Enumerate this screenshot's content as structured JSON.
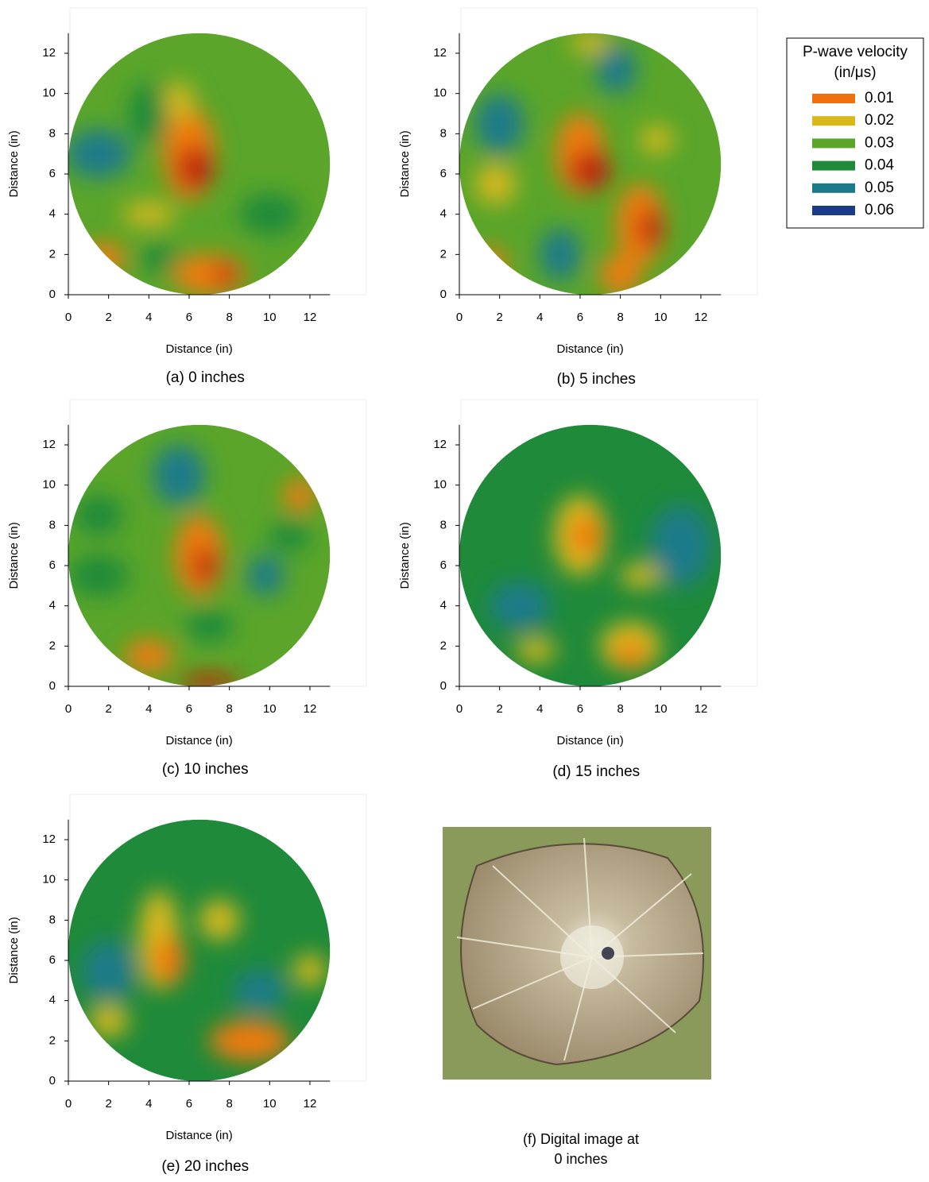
{
  "chart_data": [
    {
      "type": "contour",
      "caption": "(a) 0 inches",
      "xlabel": "Distance (in)",
      "ylabel": "Distance (in)",
      "xlim": [
        0,
        13
      ],
      "ylim": [
        0,
        13
      ],
      "xticks": [
        0,
        2,
        4,
        6,
        8,
        10,
        12
      ],
      "yticks": [
        0,
        2,
        4,
        6,
        8,
        10,
        12
      ]
    },
    {
      "type": "contour",
      "caption": "(b) 5 inches",
      "xlabel": "Distance (in)",
      "ylabel": "Distance (in)",
      "xlim": [
        0,
        13
      ],
      "ylim": [
        0,
        13
      ],
      "xticks": [
        0,
        2,
        4,
        6,
        8,
        10,
        12
      ],
      "yticks": [
        0,
        2,
        4,
        6,
        8,
        10,
        12
      ]
    },
    {
      "type": "contour",
      "caption": "(c) 10 inches",
      "xlabel": "Distance (in)",
      "ylabel": "Distance (in)",
      "xlim": [
        0,
        13
      ],
      "ylim": [
        0,
        13
      ],
      "xticks": [
        0,
        2,
        4,
        6,
        8,
        10,
        12
      ],
      "yticks": [
        0,
        2,
        4,
        6,
        8,
        10,
        12
      ]
    },
    {
      "type": "contour",
      "caption": "(d) 15 inches",
      "xlabel": "Distance (in)",
      "ylabel": "Distance (in)",
      "xlim": [
        0,
        13
      ],
      "ylim": [
        0,
        13
      ],
      "xticks": [
        0,
        2,
        4,
        6,
        8,
        10,
        12
      ],
      "yticks": [
        0,
        2,
        4,
        6,
        8,
        10,
        12
      ]
    },
    {
      "type": "contour",
      "caption": "(e) 20 inches",
      "xlabel": "Distance (in)",
      "ylabel": "Distance (in)",
      "xlim": [
        0,
        13
      ],
      "ylim": [
        0,
        13
      ],
      "xticks": [
        0,
        2,
        4,
        6,
        8,
        10,
        12
      ],
      "yticks": [
        0,
        2,
        4,
        6,
        8,
        10,
        12
      ]
    }
  ],
  "legend": {
    "title": [
      "P-wave velocity",
      "(in/μs)"
    ],
    "entries": [
      {
        "label": 0.01,
        "color": "#f07010"
      },
      {
        "label": 0.02,
        "color": "#d8b81a"
      },
      {
        "label": 0.03,
        "color": "#5aa52a"
      },
      {
        "label": 0.04,
        "color": "#1f8a3a"
      },
      {
        "label": 0.05,
        "color": "#1a7a8a"
      },
      {
        "label": 0.06,
        "color": "#1a3a8a"
      }
    ]
  },
  "photo": {
    "caption": [
      "(f) Digital image at",
      "0 inches"
    ]
  }
}
